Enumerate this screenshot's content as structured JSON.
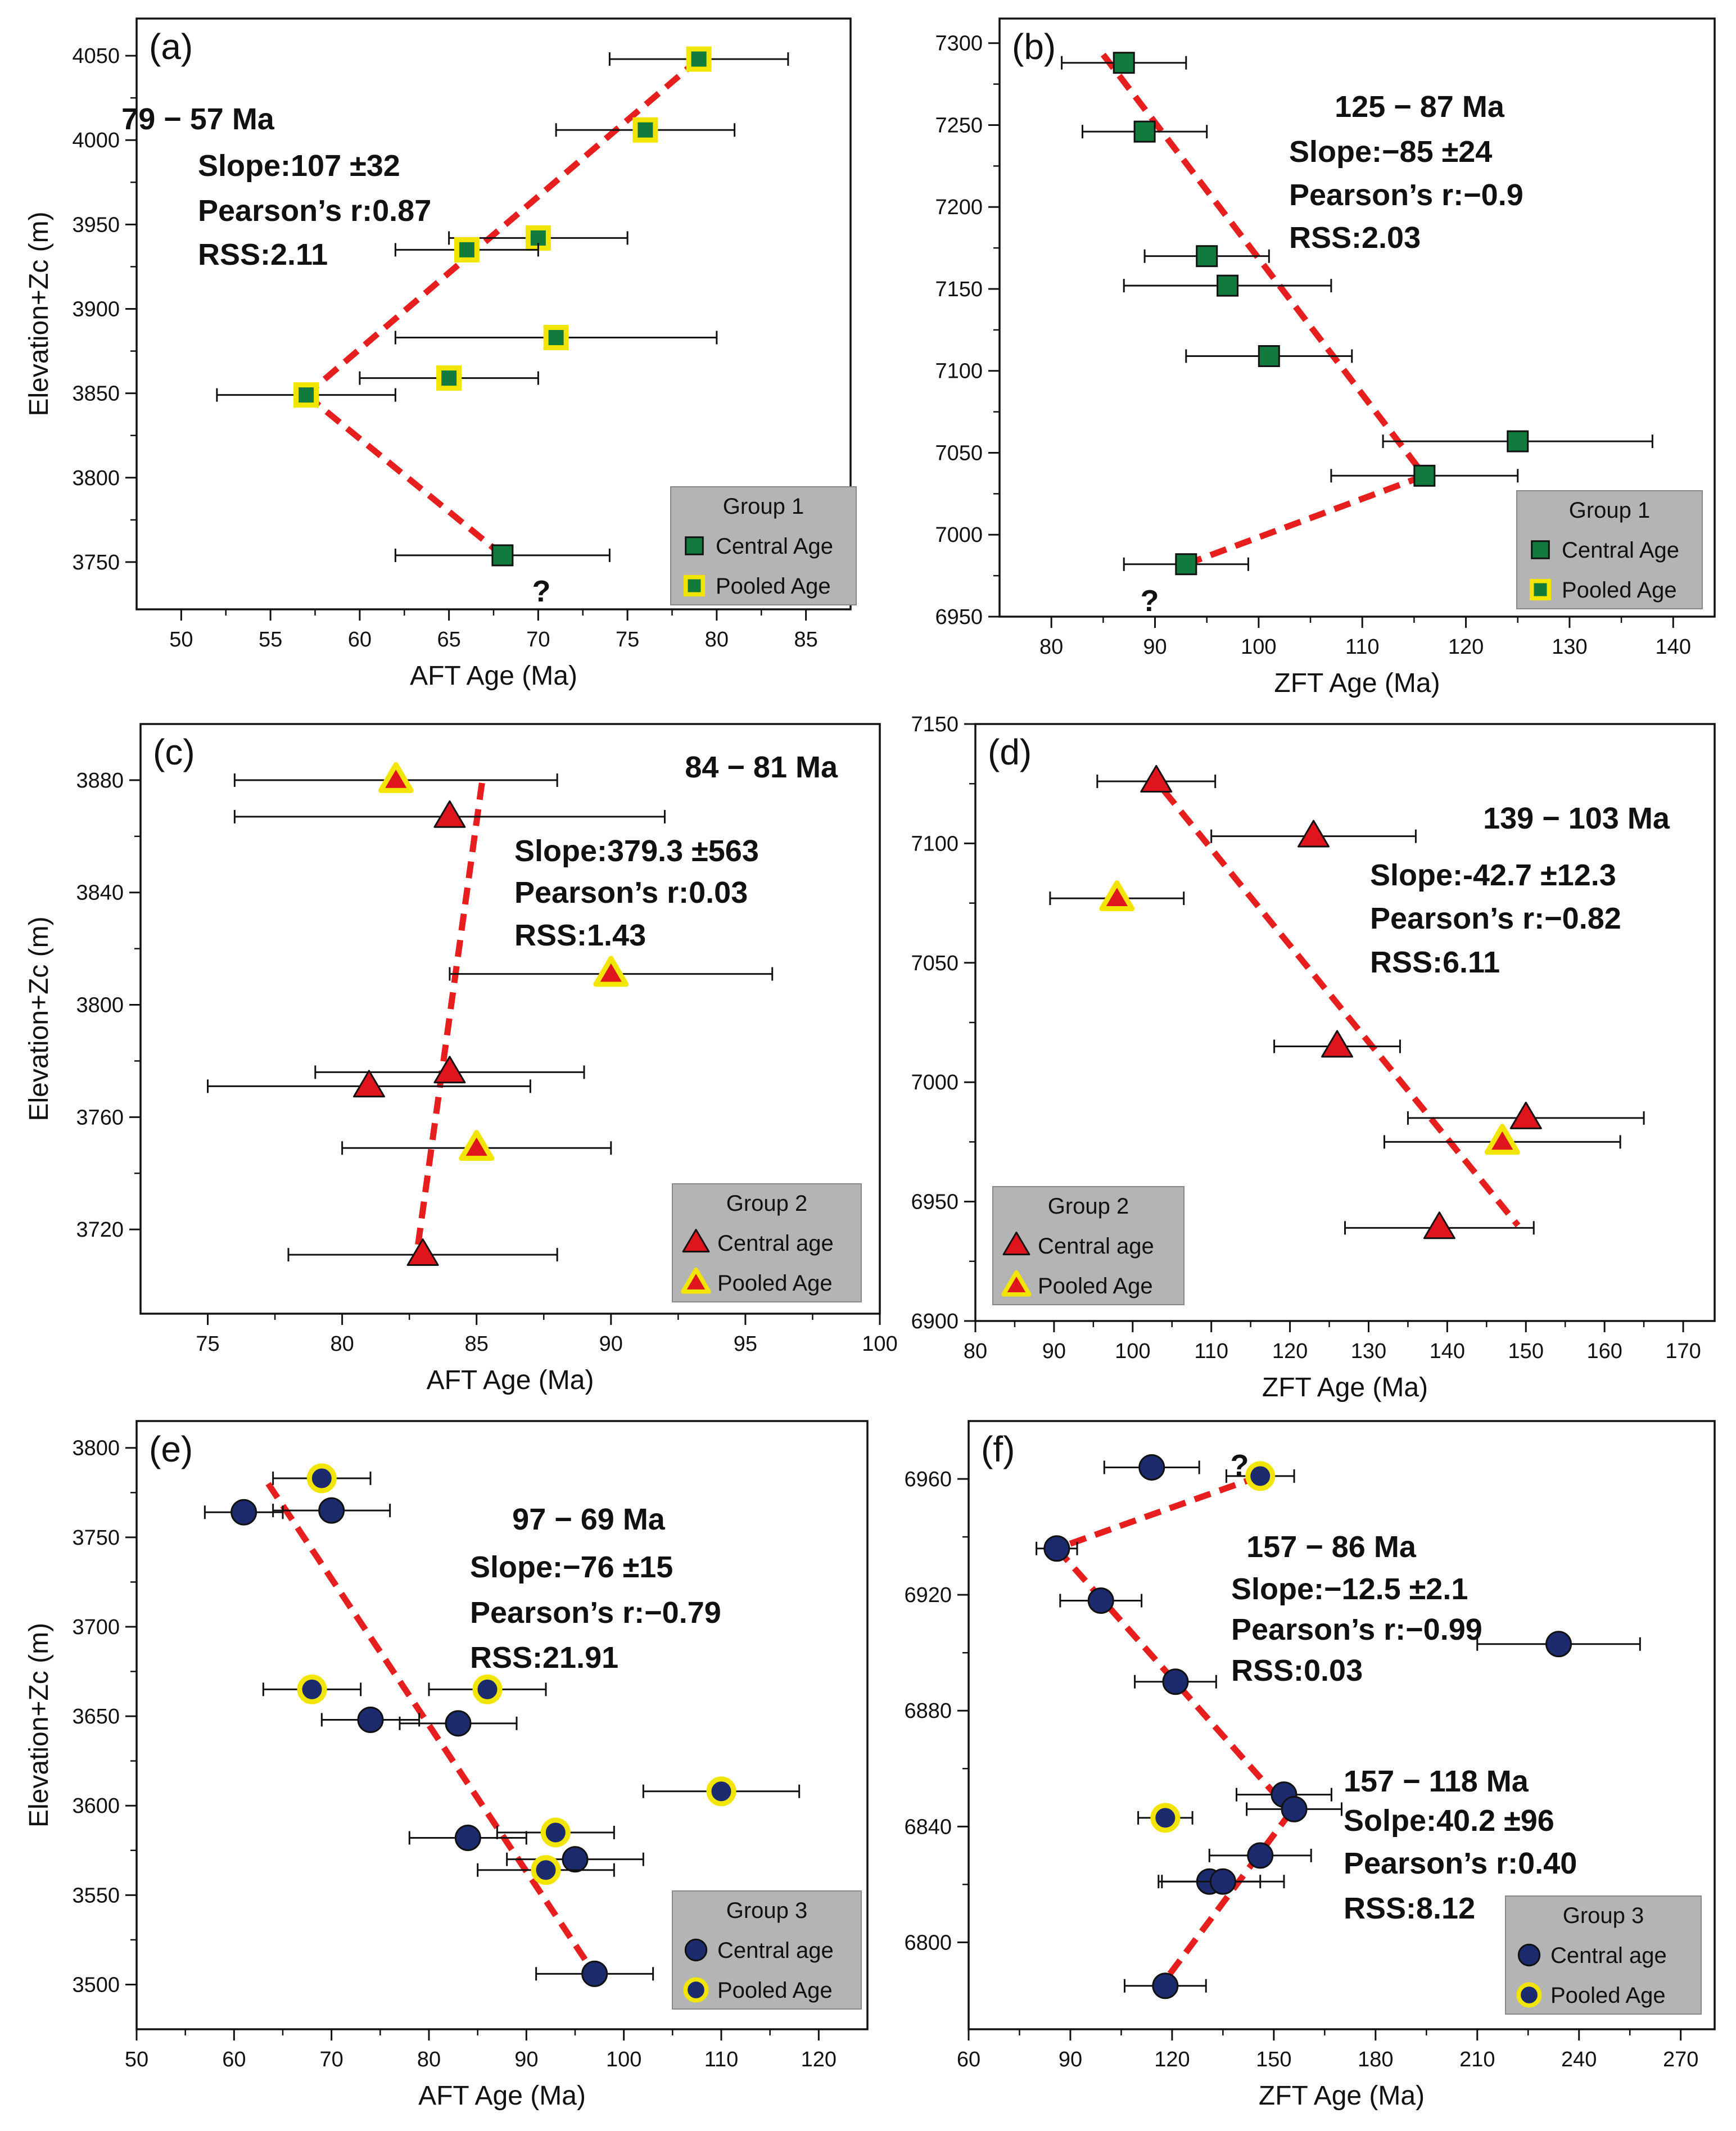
{
  "colors": {
    "green_fill": "#127a3c",
    "red_fill": "#e0141c",
    "navy_fill": "#1c2a6e",
    "pooled_edge": "#f2e600",
    "fit_line": "#e61e1e",
    "legend_bg": "#b4b4b4"
  },
  "chart_data": [
    {
      "panel": "(a)",
      "type": "scatter",
      "marker": "square",
      "xlabel": "AFT Age (Ma)",
      "ylabel": "Elevation+Zc (m)",
      "xlim": [
        47.5,
        87.5
      ],
      "ylim": [
        3722,
        4072
      ],
      "xticks": [
        50,
        55,
        60,
        65,
        70,
        75,
        80,
        85
      ],
      "yticks": [
        3750,
        3800,
        3850,
        3900,
        3950,
        4000,
        4050
      ],
      "points": [
        {
          "x": 79,
          "y": 4048,
          "err": 5,
          "pooled": true
        },
        {
          "x": 76,
          "y": 4006,
          "err": 5,
          "pooled": true
        },
        {
          "x": 70,
          "y": 3942,
          "err": 5,
          "pooled": true
        },
        {
          "x": 66,
          "y": 3935,
          "err": 4,
          "pooled": true
        },
        {
          "x": 71,
          "y": 3883,
          "err": 9,
          "pooled": true
        },
        {
          "x": 65,
          "y": 3859,
          "err": 5,
          "pooled": true
        },
        {
          "x": 57,
          "y": 3849,
          "err": 5,
          "pooled": true
        },
        {
          "x": 68,
          "y": 3754,
          "err": 6,
          "pooled": false
        }
      ],
      "fit_lines": [
        {
          "x1": 79,
          "y1": 4048,
          "x2": 57,
          "y2": 3849
        },
        {
          "x1": 57,
          "y1": 3849,
          "x2": 68,
          "y2": 3754
        }
      ],
      "annotations": [
        {
          "text": "79 − 57 Ma"
        },
        {
          "text": "Slope:107 ±32"
        },
        {
          "text": "Pearson’s r:0.87"
        },
        {
          "text": "RSS:2.11"
        }
      ],
      "question_marks": [
        "?"
      ],
      "legend": {
        "title": "Group 1",
        "central": "Central Age",
        "pooled": "Pooled Age"
      }
    },
    {
      "panel": "(b)",
      "type": "scatter",
      "marker": "square",
      "xlabel": "ZFT Age (Ma)",
      "ylabel": "",
      "xlim": [
        75,
        144
      ],
      "ylim": [
        6950,
        7315
      ],
      "xticks": [
        80,
        90,
        100,
        110,
        120,
        130,
        140
      ],
      "yticks": [
        6950,
        7000,
        7050,
        7100,
        7150,
        7200,
        7250,
        7300
      ],
      "points": [
        {
          "x": 87,
          "y": 7288,
          "err": 6,
          "pooled": false
        },
        {
          "x": 89,
          "y": 7246,
          "err": 6,
          "pooled": false
        },
        {
          "x": 95,
          "y": 7170,
          "err": 6,
          "pooled": false
        },
        {
          "x": 97,
          "y": 7152,
          "err": 10,
          "pooled": false
        },
        {
          "x": 101,
          "y": 7109,
          "err": 8,
          "pooled": false
        },
        {
          "x": 125,
          "y": 7057,
          "err": 13,
          "pooled": false
        },
        {
          "x": 116,
          "y": 7036,
          "err": 9,
          "pooled": false
        },
        {
          "x": 93,
          "y": 6982,
          "err": 6,
          "pooled": false
        }
      ],
      "fit_lines": [
        {
          "x1": 85,
          "y1": 7293,
          "x2": 116,
          "y2": 7036
        },
        {
          "x1": 116,
          "y1": 7036,
          "x2": 93,
          "y2": 6982
        }
      ],
      "annotations": [
        {
          "text": "125 − 87 Ma"
        },
        {
          "text": "Slope:−85 ±24"
        },
        {
          "text": "Pearson’s r:−0.9"
        },
        {
          "text": "RSS:2.03"
        }
      ],
      "question_marks": [
        "?"
      ],
      "legend": {
        "title": "Group 1",
        "central": "Central Age",
        "pooled": "Pooled Age"
      }
    },
    {
      "panel": "(c)",
      "type": "scatter",
      "marker": "triangle",
      "xlabel": "AFT Age (Ma)",
      "ylabel": "Elevation+Zc (m)",
      "xlim": [
        72.5,
        100
      ],
      "ylim": [
        3690,
        3900
      ],
      "xticks": [
        75,
        80,
        85,
        90,
        95,
        100
      ],
      "yticks": [
        3720,
        3760,
        3800,
        3840,
        3880
      ],
      "points": [
        {
          "x": 82,
          "y": 3880,
          "err": 6,
          "pooled": true
        },
        {
          "x": 84,
          "y": 3867,
          "err": 8,
          "pooled": false
        },
        {
          "x": 90,
          "y": 3811,
          "err": 6,
          "pooled": true
        },
        {
          "x": 84,
          "y": 3776,
          "err": 5,
          "pooled": false
        },
        {
          "x": 81,
          "y": 3771,
          "err": 6,
          "pooled": false
        },
        {
          "x": 85,
          "y": 3749,
          "err": 5,
          "pooled": true
        },
        {
          "x": 83,
          "y": 3711,
          "err": 5,
          "pooled": false
        }
      ],
      "fit_lines": [
        {
          "x1": 85.2,
          "y1": 3879,
          "x2": 82.8,
          "y2": 3713
        }
      ],
      "annotations": [
        {
          "text": "84 − 81 Ma"
        },
        {
          "text": "Slope:379.3 ±563"
        },
        {
          "text": "Pearson’s r:0.03"
        },
        {
          "text": "RSS:1.43"
        }
      ],
      "question_marks": [],
      "legend": {
        "title": "Group 2",
        "central": "Central age",
        "pooled": "Pooled Age"
      }
    },
    {
      "panel": "(d)",
      "type": "scatter",
      "marker": "triangle",
      "xlabel": "ZFT Age (Ma)",
      "ylabel": "",
      "xlim": [
        80,
        174
      ],
      "ylim": [
        6900,
        7150
      ],
      "xticks": [
        80,
        90,
        100,
        110,
        120,
        130,
        140,
        150,
        160,
        170
      ],
      "yticks": [
        6900,
        6950,
        7000,
        7050,
        7100,
        7150
      ],
      "points": [
        {
          "x": 103,
          "y": 7126,
          "err": 7.5,
          "pooled": false
        },
        {
          "x": 123,
          "y": 7103,
          "err": 13,
          "pooled": false
        },
        {
          "x": 98,
          "y": 7077,
          "err": 8.5,
          "pooled": true
        },
        {
          "x": 126,
          "y": 7015,
          "err": 8,
          "pooled": false
        },
        {
          "x": 150,
          "y": 6985,
          "err": 15,
          "pooled": false
        },
        {
          "x": 147,
          "y": 6975,
          "err": 15,
          "pooled": true
        },
        {
          "x": 139,
          "y": 6939,
          "err": 12,
          "pooled": false
        }
      ],
      "fit_lines": [
        {
          "x1": 104,
          "y1": 7122,
          "x2": 149,
          "y2": 6940
        }
      ],
      "annotations": [
        {
          "text": "139 − 103 Ma"
        },
        {
          "text": "Slope:-42.7 ±12.3"
        },
        {
          "text": "Pearson’s r:−0.82"
        },
        {
          "text": "RSS:6.11"
        }
      ],
      "question_marks": [],
      "legend": {
        "title": "Group 2",
        "central": "Central age",
        "pooled": "Pooled Age"
      }
    },
    {
      "panel": "(e)",
      "type": "scatter",
      "marker": "circle",
      "xlabel": "AFT Age (Ma)",
      "ylabel": "Elevation+Zc (m)",
      "xlim": [
        50,
        125
      ],
      "ylim": [
        3475,
        3815
      ],
      "xticks": [
        50,
        60,
        70,
        80,
        90,
        100,
        110,
        120
      ],
      "yticks": [
        3500,
        3550,
        3600,
        3650,
        3700,
        3750,
        3800
      ],
      "points": [
        {
          "x": 69,
          "y": 3783,
          "err": 5,
          "pooled": true
        },
        {
          "x": 70,
          "y": 3765,
          "err": 6,
          "pooled": false
        },
        {
          "x": 61,
          "y": 3764,
          "err": 4,
          "pooled": false
        },
        {
          "x": 68,
          "y": 3665,
          "err": 5,
          "pooled": true
        },
        {
          "x": 86,
          "y": 3665,
          "err": 6,
          "pooled": true
        },
        {
          "x": 74,
          "y": 3648,
          "err": 5,
          "pooled": false
        },
        {
          "x": 83,
          "y": 3646,
          "err": 6,
          "pooled": false
        },
        {
          "x": 110,
          "y": 3608,
          "err": 8,
          "pooled": true
        },
        {
          "x": 93,
          "y": 3585,
          "err": 6,
          "pooled": true
        },
        {
          "x": 84,
          "y": 3582,
          "err": 6,
          "pooled": false
        },
        {
          "x": 95,
          "y": 3570,
          "err": 7,
          "pooled": false
        },
        {
          "x": 92,
          "y": 3564,
          "err": 7,
          "pooled": true
        },
        {
          "x": 97,
          "y": 3506,
          "err": 6,
          "pooled": false
        }
      ],
      "fit_lines": [
        {
          "x1": 63.5,
          "y1": 3780,
          "x2": 97,
          "y2": 3506
        }
      ],
      "annotations": [
        {
          "text": "97 − 69 Ma"
        },
        {
          "text": "Slope:−76 ±15"
        },
        {
          "text": "Pearson’s r:−0.79"
        },
        {
          "text": "RSS:21.91"
        }
      ],
      "question_marks": [],
      "legend": {
        "title": "Group 3",
        "central": "Central age",
        "pooled": "Pooled Age"
      }
    },
    {
      "panel": "(f)",
      "type": "scatter",
      "marker": "circle",
      "xlabel": "ZFT Age (Ma)",
      "ylabel": "",
      "xlim": [
        60,
        280
      ],
      "ylim": [
        6770,
        6980
      ],
      "xticks": [
        60,
        90,
        120,
        150,
        180,
        210,
        240,
        270
      ],
      "yticks": [
        6800,
        6840,
        6880,
        6920,
        6960
      ],
      "points": [
        {
          "x": 114,
          "y": 6964,
          "err": 14,
          "pooled": false
        },
        {
          "x": 146,
          "y": 6961,
          "err": 10,
          "pooled": true
        },
        {
          "x": 86,
          "y": 6936,
          "err": 6,
          "pooled": false
        },
        {
          "x": 99,
          "y": 6918,
          "err": 12,
          "pooled": false
        },
        {
          "x": 234,
          "y": 6903,
          "err": 24,
          "pooled": false
        },
        {
          "x": 121,
          "y": 6890,
          "err": 12,
          "pooled": false
        },
        {
          "x": 153,
          "y": 6851,
          "err": 14,
          "pooled": false
        },
        {
          "x": 156,
          "y": 6846,
          "err": 14,
          "pooled": false
        },
        {
          "x": 118,
          "y": 6843,
          "err": 8,
          "pooled": true
        },
        {
          "x": 146,
          "y": 6830,
          "err": 15,
          "pooled": false
        },
        {
          "x": 131,
          "y": 6821,
          "err": 15,
          "pooled": false
        },
        {
          "x": 135,
          "y": 6821,
          "err": 18,
          "pooled": false
        },
        {
          "x": 118,
          "y": 6785,
          "err": 12,
          "pooled": false
        }
      ],
      "fit_lines": [
        {
          "x1": 146,
          "y1": 6961,
          "x2": 86,
          "y2": 6936
        },
        {
          "x1": 86,
          "y1": 6936,
          "x2": 155,
          "y2": 6845
        },
        {
          "x1": 155,
          "y1": 6845,
          "x2": 118,
          "y2": 6787
        }
      ],
      "annotations": [
        {
          "text": "157 − 86 Ma"
        },
        {
          "text": "Slope:−12.5 ±2.1"
        },
        {
          "text": "Pearson’s r:−0.99"
        },
        {
          "text": "RSS:0.03"
        },
        {
          "text": "157 − 118 Ma"
        },
        {
          "text": "Solpe:40.2 ±96"
        },
        {
          "text": "Pearson’s r:0.40"
        },
        {
          "text": "RSS:8.12"
        }
      ],
      "question_marks": [
        "?"
      ],
      "legend": {
        "title": "Group 3",
        "central": "Central age",
        "pooled": "Pooled Age"
      }
    }
  ]
}
